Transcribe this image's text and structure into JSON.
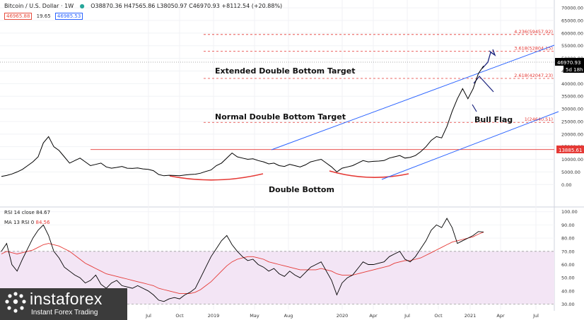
{
  "header": {
    "symbol": "Bitcoin / U.S. Dollar · 1W",
    "ohlc": "O38870.36 H47565.86 L38050.97 C46970.93 +8112.54 (+20.88%)",
    "sell": "46965.88",
    "spread": "19.65",
    "buy": "46985.53"
  },
  "rsi_legend": {
    "line1": "RSI 14 close",
    "value1": "84.67",
    "line2": "MA 13 RSI 0",
    "value2": "84.56"
  },
  "watermark": {
    "brand": "instaforex",
    "tagline": "Instant Forex Trading"
  },
  "price_tags": {
    "last": "46970.93",
    "countdown": "5d 18h",
    "level": "13885.61"
  },
  "annotations": {
    "extended_target": "Extended Double Bottom Target",
    "normal_target": "Normal Double Bottom Target",
    "double_bottom": "Double Bottom",
    "bull_flag": "Bull Flag"
  },
  "chart_data": [
    {
      "type": "line",
      "title": "Bitcoin / U.S. Dollar · 1W",
      "y_ticks": [
        0,
        5000,
        10000,
        15000,
        20000,
        25000,
        30000,
        35000,
        40000,
        45000,
        50000,
        55000,
        60000,
        65000,
        70000
      ],
      "ylim": [
        -3000,
        72000
      ],
      "x_ticks": [
        "Jul",
        "Oct",
        "2019",
        "May",
        "Aug",
        "2020",
        "Apr",
        "Jul",
        "Oct",
        "2021",
        "Apr",
        "Jul"
      ],
      "fib_levels": [
        {
          "label": "4.236(59457.92)",
          "value": 59457.92
        },
        {
          "label": "3.618(52804.15)",
          "value": 52804.15
        },
        {
          "label": "2.618(42047.23)",
          "value": 42047.23
        },
        {
          "label": "1(24640.51)",
          "value": 24640.51
        }
      ],
      "horizontal_level": 13885.61,
      "last_price": 46970.93,
      "series": [
        {
          "values": [
            3200,
            3600,
            4200,
            5000,
            6000,
            7500,
            9000,
            11000,
            16500,
            19000,
            15000,
            13500,
            11000,
            8500,
            9500,
            10500,
            9000,
            7500,
            8000,
            8500,
            7000,
            6500,
            6800,
            7200,
            6500,
            6400,
            6600,
            6200,
            6000,
            5500,
            4000,
            3500,
            3700,
            3600,
            3500,
            3800,
            4000,
            4100,
            4500,
            5200,
            5800,
            7500,
            8500,
            10500,
            12500,
            11000,
            10500,
            10000,
            10200,
            9500,
            9000,
            8200,
            8500,
            7500,
            7200,
            8000,
            7500,
            7000,
            7800,
            9000,
            9500,
            10000,
            8500,
            7000,
            5000,
            6500,
            7000,
            7500,
            8500,
            9500,
            9000,
            9200,
            9300,
            9500,
            10500,
            11000,
            11500,
            10500,
            10800,
            11500,
            13000,
            15000,
            17500,
            19000,
            18500,
            23000,
            29000,
            34000,
            38000,
            34000,
            38000,
            44000,
            47000
          ]
        }
      ]
    },
    {
      "type": "line",
      "title": "RSI 14 close",
      "y_ticks": [
        30,
        40,
        50,
        60,
        70,
        80,
        90,
        100
      ],
      "ylim": [
        26,
        102
      ],
      "band": [
        30,
        70
      ],
      "series": [
        {
          "name": "RSI 14 close",
          "values": [
            70,
            76,
            60,
            55,
            64,
            72,
            80,
            86,
            90,
            82,
            70,
            65,
            58,
            55,
            52,
            50,
            46,
            48,
            52,
            45,
            42,
            46,
            48,
            44,
            43,
            42,
            44,
            42,
            40,
            37,
            33,
            32,
            34,
            35,
            34,
            37,
            39,
            42,
            50,
            58,
            66,
            72,
            78,
            82,
            75,
            70,
            66,
            63,
            64,
            60,
            58,
            55,
            57,
            53,
            51,
            55,
            52,
            50,
            54,
            58,
            60,
            62,
            55,
            48,
            37,
            46,
            50,
            52,
            57,
            62,
            60,
            60,
            61,
            62,
            66,
            68,
            70,
            64,
            62,
            66,
            72,
            78,
            86,
            90,
            88,
            95,
            88,
            76,
            78,
            80,
            82,
            85,
            84.67
          ]
        },
        {
          "name": "MA 13 RSI 0",
          "values": [
            68,
            70,
            69,
            68,
            69,
            70,
            71,
            73,
            75,
            76,
            75,
            74,
            72,
            70,
            67,
            64,
            61,
            59,
            57,
            55,
            53,
            52,
            51,
            50,
            49,
            48,
            47,
            46,
            45,
            44,
            42,
            41,
            40,
            39,
            38,
            38,
            38,
            39,
            41,
            44,
            47,
            51,
            55,
            59,
            62,
            64,
            65,
            66,
            66,
            65,
            64,
            62,
            61,
            60,
            59,
            58,
            57,
            56,
            56,
            56,
            56,
            57,
            56,
            55,
            53,
            52,
            52,
            52,
            53,
            54,
            55,
            56,
            57,
            58,
            59,
            61,
            62,
            63,
            63,
            64,
            65,
            67,
            69,
            71,
            73,
            75,
            77,
            78,
            79,
            80,
            81,
            83,
            84.56
          ]
        }
      ]
    }
  ],
  "colors": {
    "price": "#000000",
    "rsi": "#000000",
    "rsi_ma": "#e53935",
    "fib": "#e53935",
    "level": "#e53935",
    "channel": "#2962ff",
    "bowl": "#e53935",
    "band": "#f3e5f5",
    "watermark_bg": "#3b3b3b"
  }
}
